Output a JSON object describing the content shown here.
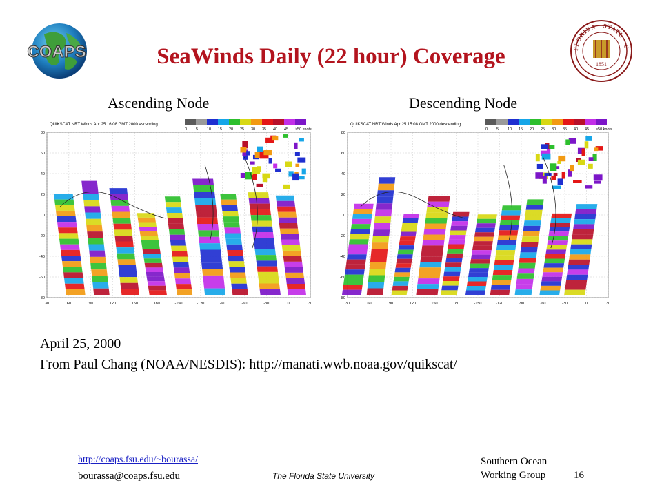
{
  "title": "SeaWinds Daily (22 hour) Coverage",
  "logo_text": "COAPS",
  "seal_text": "FLORIDA STATE UNIVERSITY 1851",
  "maps": {
    "ascending": {
      "label": "Ascending Node",
      "caption": "QUIKSCAT NRT Winds Apr 25 16:08 GMT 2000 ascending"
    },
    "descending": {
      "label": "Descending Node",
      "caption": "QUIKSCAT NRT Winds Apr 25 15:08 GMT 2000 descending"
    },
    "colorbar_ticks": [
      "0",
      "5",
      "10",
      "15",
      "20",
      "25",
      "30",
      "35",
      "40",
      "45",
      "≥50 knots"
    ],
    "colorbar_colors": [
      "#5a5a5a",
      "#9a9a9a",
      "#1f2fd0",
      "#16a6e8",
      "#2dbf2d",
      "#d8d814",
      "#f29a12",
      "#e41616",
      "#b8102a",
      "#c22ee8",
      "#7c16c8"
    ],
    "lat_ticks": [
      "80",
      "60",
      "40",
      "20",
      "0",
      "-20",
      "-40",
      "-60",
      "-80"
    ],
    "lon_ticks": [
      "30",
      "60",
      "90",
      "120",
      "150",
      "180",
      "-150",
      "-120",
      "-90",
      "-60",
      "-30",
      "0",
      "30"
    ]
  },
  "date": "April 25, 2000",
  "source": "From Paul Chang (NOAA/NESDIS): http://manati.wwb.noaa.gov/quikscat/",
  "footer": {
    "link": "http://coaps.fsu.edu/~bourassa/",
    "email": "bourassa@coaps.fsu.edu",
    "university": "The Florida State University",
    "group_line1": "Southern Ocean",
    "group_line2": "Working Group",
    "page_number": "16"
  }
}
